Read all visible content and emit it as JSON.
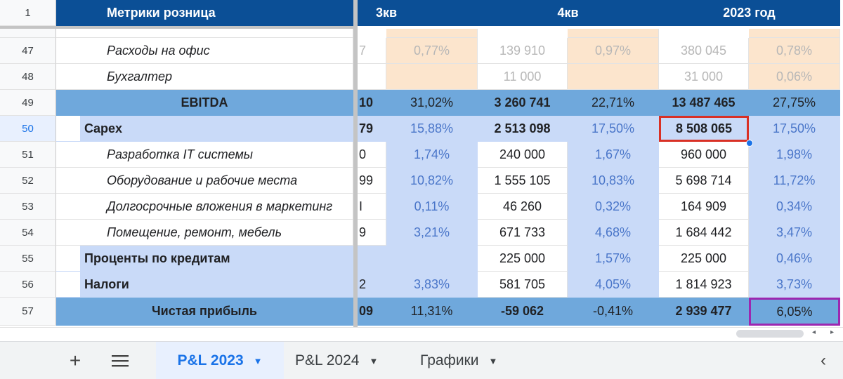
{
  "header": {
    "row_number": "1",
    "title": "Метрики розница",
    "col_q3": "3кв",
    "col_q4": "4кв",
    "col_year": "2023 год"
  },
  "rows": [
    {
      "num": "47",
      "label": "Расходы на офис",
      "v0": "7",
      "v1": "0,77%",
      "v2": "139 910",
      "v3": "0,97%",
      "v4": "380 045",
      "v5": "0,78%"
    },
    {
      "num": "48",
      "label": "Бухгалтер",
      "v0": "",
      "v1": "",
      "v2": "11 000",
      "v3": "",
      "v4": "31 000",
      "v5": "0,06%"
    },
    {
      "num": "49",
      "label": "EBITDA",
      "v0": "10",
      "v1": "31,02%",
      "v2": "3 260 741",
      "v3": "22,71%",
      "v4": "13 487 465",
      "v5": "27,75%"
    },
    {
      "num": "50",
      "label": "Capex",
      "v0": "79",
      "v1": "15,88%",
      "v2": "2 513 098",
      "v3": "17,50%",
      "v4": "8 508 065",
      "v5": "17,50%"
    },
    {
      "num": "51",
      "label": "Разработка IT системы",
      "v0": "0",
      "v1": "1,74%",
      "v2": "240 000",
      "v3": "1,67%",
      "v4": "960 000",
      "v5": "1,98%"
    },
    {
      "num": "52",
      "label": "Оборудование и рабочие места",
      "v0": "99",
      "v1": "10,82%",
      "v2": "1 555 105",
      "v3": "10,83%",
      "v4": "5 698 714",
      "v5": "11,72%"
    },
    {
      "num": "53",
      "label": "Долгосрочные вложения в маркетинг",
      "v0": "I",
      "v1": "0,11%",
      "v2": "46 260",
      "v3": "0,32%",
      "v4": "164 909",
      "v5": "0,34%"
    },
    {
      "num": "54",
      "label": "Помещение, ремонт, мебель",
      "v0": "9",
      "v1": "3,21%",
      "v2": "671 733",
      "v3": "4,68%",
      "v4": "1 684 442",
      "v5": "3,47%"
    },
    {
      "num": "55",
      "label": "Проценты по кредитам",
      "v0": "",
      "v1": "",
      "v2": "225 000",
      "v3": "1,57%",
      "v4": "225 000",
      "v5": "0,46%"
    },
    {
      "num": "56",
      "label": "Налоги",
      "v0": "2",
      "v1": "3,83%",
      "v2": "581 705",
      "v3": "4,05%",
      "v4": "1 814 923",
      "v5": "3,73%"
    },
    {
      "num": "57",
      "label": "Чистая прибыль",
      "v0": "09",
      "v1": "11,31%",
      "v2": "-59 062",
      "v3": "-0,41%",
      "v4": "2 939 477",
      "v5": "6,05%"
    }
  ],
  "tabs": {
    "add_icon": "plus-icon",
    "menu_icon": "hamburger-icon",
    "items": [
      {
        "label": "P&L 2023",
        "active": true
      },
      {
        "label": "P&L 2024",
        "active": false
      },
      {
        "label": "Графики",
        "active": false
      }
    ],
    "nav_icon": "chevron-left-icon"
  },
  "colors": {
    "header_bg": "#0b4f96",
    "ebitda_bg": "#6fa8dc",
    "capex_bg": "#c9daf8",
    "peach": "#fce5cd",
    "selection_red": "#d93025",
    "selection_purple": "#9c27b0"
  }
}
